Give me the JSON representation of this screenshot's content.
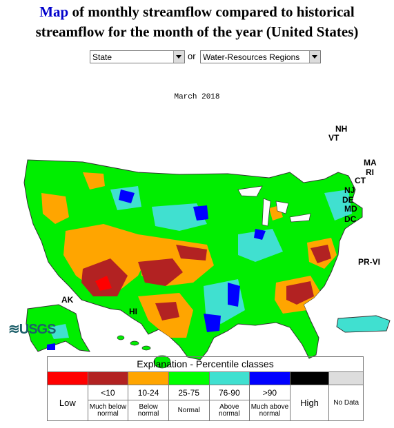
{
  "header": {
    "title_link": "Map",
    "title_rest_line1": "of monthly streamflow compared to historical",
    "title_line2": "streamflow for the month of the year (United States)"
  },
  "controls": {
    "state_select": "State",
    "or_label": "or",
    "region_select": "Water-Resources Regions"
  },
  "map": {
    "date": "March 2018",
    "labels": {
      "nh": "NH",
      "vt": "VT",
      "ma": "MA",
      "ri": "RI",
      "ct": "CT",
      "nj": "NJ",
      "de": "DE",
      "md": "MD",
      "dc": "DC",
      "pr": "PR-VI",
      "ak": "AK",
      "hi": "HI"
    }
  },
  "logo": "USGS",
  "legend": {
    "title": "Explanation - Percentile classes",
    "low": "Low",
    "high": "High",
    "classes": [
      {
        "range": "<10",
        "desc_1": "Much below",
        "desc_2": "normal",
        "color": "#b22222"
      },
      {
        "range": "10-24",
        "desc_1": "Below",
        "desc_2": "normal",
        "color": "#ffa500"
      },
      {
        "range": "25-75",
        "desc_1": "Normal",
        "desc_2": "",
        "color": "#00ff00"
      },
      {
        "range": "76-90",
        "desc_1": "Above",
        "desc_2": "normal",
        "color": "#40e0d0"
      },
      {
        "range": ">90",
        "desc_1": "Much above",
        "desc_2": "normal",
        "color": "#0000ff"
      }
    ],
    "low_color": "#ff0000",
    "high_color": "#000000",
    "no_data": "No Data",
    "no_data_color": "#dddddd"
  }
}
